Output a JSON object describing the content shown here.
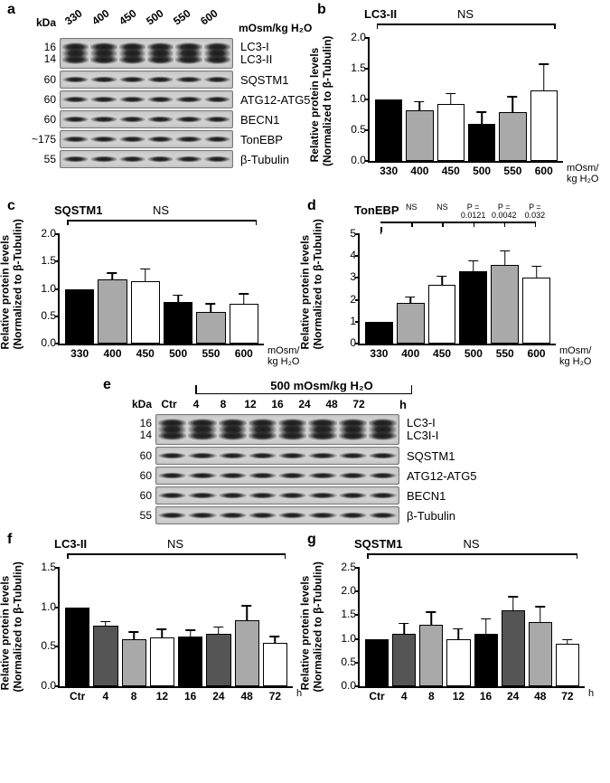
{
  "panels": {
    "a": {
      "unit_label": "mOsm/kg H₂O",
      "lanes": [
        "330",
        "400",
        "450",
        "500",
        "550",
        "600"
      ],
      "kDa_header": "kDa",
      "rows": [
        {
          "kDa": "16\n14",
          "label": "LC3-I",
          "label2": "LC3-II",
          "double": true
        },
        {
          "kDa": "60",
          "label": "SQSTM1"
        },
        {
          "kDa": "60",
          "label": "ATG12-ATG5"
        },
        {
          "kDa": "60",
          "label": "BECN1"
        },
        {
          "kDa": "~175",
          "label": "TonEBP"
        },
        {
          "kDa": "55",
          "label": "β-Tubulin"
        }
      ]
    },
    "b": {
      "title": "LC3-II",
      "ns": "NS",
      "ylabel": "Relative protein levels\n(Normalized to β-Tubulin)",
      "ymin": 0,
      "ymax": 2.0,
      "ystep": 0.5,
      "categories": [
        "330",
        "400",
        "450",
        "500",
        "550",
        "600"
      ],
      "values": [
        1.0,
        0.83,
        0.92,
        0.6,
        0.8,
        1.15
      ],
      "errors": [
        0.0,
        0.16,
        0.2,
        0.22,
        0.27,
        0.45
      ],
      "colors": [
        "#000000",
        "#a9a9a9",
        "#ffffff",
        "#000000",
        "#a9a9a9",
        "#ffffff"
      ],
      "x_unit": "mOsm/\nkg H₂O"
    },
    "c": {
      "title": "SQSTM1",
      "ns": "NS",
      "ylabel": "Relative protein levels\n(Normalized to β-Tubulin)",
      "ymin": 0,
      "ymax": 2.0,
      "ystep": 0.5,
      "categories": [
        "330",
        "400",
        "450",
        "500",
        "550",
        "600"
      ],
      "values": [
        1.0,
        1.17,
        1.14,
        0.76,
        0.58,
        0.72
      ],
      "errors": [
        0.0,
        0.15,
        0.25,
        0.15,
        0.18,
        0.22
      ],
      "colors": [
        "#000000",
        "#a9a9a9",
        "#ffffff",
        "#000000",
        "#a9a9a9",
        "#ffffff"
      ],
      "x_unit": "mOsm/\nkg H₂O"
    },
    "d": {
      "title": "TonEBP",
      "ylabel": "Relative protein levels\n(Normalized to β-Tubulin)",
      "ymin": 0,
      "ymax": 5,
      "ystep": 1,
      "categories": [
        "330",
        "400",
        "450",
        "500",
        "550",
        "600"
      ],
      "values": [
        1.0,
        1.85,
        2.7,
        3.3,
        3.6,
        3.0
      ],
      "errors": [
        0.0,
        0.35,
        0.45,
        0.55,
        0.7,
        0.6
      ],
      "colors": [
        "#000000",
        "#a9a9a9",
        "#ffffff",
        "#000000",
        "#a9a9a9",
        "#ffffff"
      ],
      "x_unit": "mOsm/\nkg H₂O",
      "annotations": [
        "",
        "NS",
        "NS",
        "P =\n0.0121",
        "P =\n0.0042",
        "P =\n0.032"
      ],
      "bracket": true
    },
    "e": {
      "header": "500 mOsm/kg H₂O",
      "lanes": [
        "Ctr",
        "4",
        "8",
        "12",
        "16",
        "24",
        "48",
        "72"
      ],
      "lane_unit": "h",
      "kDa_header": "kDa",
      "rows": [
        {
          "kDa": "16\n14",
          "label": "LC3-I",
          "label2": "LC3I-I",
          "double": true
        },
        {
          "kDa": "60",
          "label": "SQSTM1"
        },
        {
          "kDa": "60",
          "label": "ATG12-ATG5"
        },
        {
          "kDa": "60",
          "label": "BECN1"
        },
        {
          "kDa": "55",
          "label": "β-Tubulin"
        }
      ]
    },
    "f": {
      "title": "LC3-II",
      "ns": "NS",
      "ylabel": "Relative protein levels\n(Normalized to β-Tubulin)",
      "ymin": 0,
      "ymax": 1.5,
      "ystep": 0.5,
      "categories": [
        "Ctr",
        "4",
        "8",
        "12",
        "16",
        "24",
        "48",
        "72"
      ],
      "values": [
        1.0,
        0.77,
        0.6,
        0.62,
        0.63,
        0.66,
        0.84,
        0.55
      ],
      "errors": [
        0.0,
        0.07,
        0.11,
        0.12,
        0.1,
        0.11,
        0.2,
        0.1
      ],
      "colors": [
        "#000000",
        "#555555",
        "#a9a9a9",
        "#ffffff",
        "#000000",
        "#555555",
        "#a9a9a9",
        "#ffffff"
      ],
      "x_unit": "h"
    },
    "g": {
      "title": "SQSTM1",
      "ns": "NS",
      "ylabel": "Relative protein levels\n(Normalized to β-Tubulin)",
      "ymin": 0,
      "ymax": 2.5,
      "ystep": 0.5,
      "categories": [
        "Ctr",
        "4",
        "8",
        "12",
        "16",
        "24",
        "48",
        "72"
      ],
      "values": [
        1.0,
        1.1,
        1.3,
        1.0,
        1.1,
        1.6,
        1.35,
        0.9
      ],
      "errors": [
        0.0,
        0.26,
        0.3,
        0.25,
        0.36,
        0.32,
        0.36,
        0.12
      ],
      "colors": [
        "#000000",
        "#555555",
        "#a9a9a9",
        "#ffffff",
        "#000000",
        "#555555",
        "#a9a9a9",
        "#ffffff"
      ],
      "x_unit": "h"
    }
  }
}
